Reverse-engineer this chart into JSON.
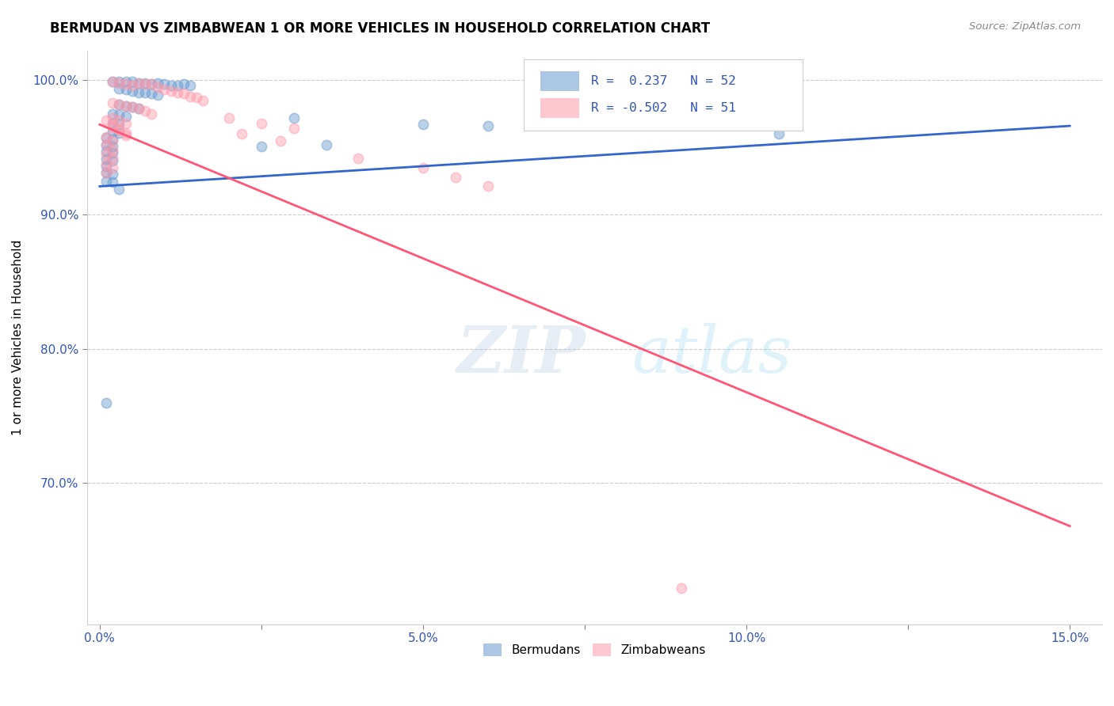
{
  "title": "BERMUDAN VS ZIMBABWEAN 1 OR MORE VEHICLES IN HOUSEHOLD CORRELATION CHART",
  "source": "Source: ZipAtlas.com",
  "ylabel": "1 or more Vehicles in Household",
  "xlim": [
    -0.002,
    0.155
  ],
  "ylim": [
    0.595,
    1.022
  ],
  "yticks": [
    0.7,
    0.8,
    0.9,
    1.0
  ],
  "ytick_labels": [
    "70.0%",
    "80.0%",
    "90.0%",
    "100.0%"
  ],
  "xtick_labels": [
    "0.0%",
    "",
    "5.0%",
    "",
    "10.0%",
    "",
    "15.0%"
  ],
  "xticks": [
    0.0,
    0.025,
    0.05,
    0.075,
    0.1,
    0.125,
    0.15
  ],
  "bermudan_color": "#6699CC",
  "zimbabwean_color": "#FF99AA",
  "bermudan_line_color": "#3366CC",
  "zimbabwean_line_color": "#FF5577",
  "legend_R_bermudan": "R =  0.237",
  "legend_N_bermudan": "N = 52",
  "legend_R_zimbabwean": "R = -0.502",
  "legend_N_zimbabwean": "N = 51",
  "watermark_zip": "ZIP",
  "watermark_atlas": "atlas",
  "bermudan_scatter": [
    [
      0.002,
      0.999
    ],
    [
      0.003,
      0.999
    ],
    [
      0.004,
      0.999
    ],
    [
      0.005,
      0.999
    ],
    [
      0.006,
      0.998
    ],
    [
      0.007,
      0.998
    ],
    [
      0.008,
      0.997
    ],
    [
      0.009,
      0.998
    ],
    [
      0.01,
      0.997
    ],
    [
      0.011,
      0.996
    ],
    [
      0.012,
      0.996
    ],
    [
      0.013,
      0.997
    ],
    [
      0.014,
      0.996
    ],
    [
      0.003,
      0.994
    ],
    [
      0.004,
      0.993
    ],
    [
      0.005,
      0.992
    ],
    [
      0.006,
      0.991
    ],
    [
      0.007,
      0.991
    ],
    [
      0.008,
      0.99
    ],
    [
      0.009,
      0.989
    ],
    [
      0.003,
      0.982
    ],
    [
      0.004,
      0.981
    ],
    [
      0.005,
      0.98
    ],
    [
      0.006,
      0.979
    ],
    [
      0.002,
      0.975
    ],
    [
      0.003,
      0.974
    ],
    [
      0.004,
      0.973
    ],
    [
      0.002,
      0.968
    ],
    [
      0.003,
      0.967
    ],
    [
      0.002,
      0.962
    ],
    [
      0.003,
      0.961
    ],
    [
      0.001,
      0.957
    ],
    [
      0.002,
      0.956
    ],
    [
      0.001,
      0.952
    ],
    [
      0.002,
      0.951
    ],
    [
      0.001,
      0.947
    ],
    [
      0.002,
      0.946
    ],
    [
      0.001,
      0.941
    ],
    [
      0.002,
      0.94
    ],
    [
      0.001,
      0.936
    ],
    [
      0.001,
      0.931
    ],
    [
      0.002,
      0.93
    ],
    [
      0.001,
      0.925
    ],
    [
      0.002,
      0.924
    ],
    [
      0.003,
      0.919
    ],
    [
      0.03,
      0.972
    ],
    [
      0.05,
      0.967
    ],
    [
      0.06,
      0.966
    ],
    [
      0.025,
      0.951
    ],
    [
      0.035,
      0.952
    ],
    [
      0.105,
      0.96
    ],
    [
      0.001,
      0.76
    ]
  ],
  "zimbabwean_scatter": [
    [
      0.002,
      0.999
    ],
    [
      0.003,
      0.998
    ],
    [
      0.004,
      0.997
    ],
    [
      0.005,
      0.996
    ],
    [
      0.006,
      0.998
    ],
    [
      0.007,
      0.997
    ],
    [
      0.008,
      0.997
    ],
    [
      0.009,
      0.995
    ],
    [
      0.01,
      0.993
    ],
    [
      0.011,
      0.992
    ],
    [
      0.012,
      0.991
    ],
    [
      0.013,
      0.99
    ],
    [
      0.014,
      0.988
    ],
    [
      0.015,
      0.987
    ],
    [
      0.016,
      0.985
    ],
    [
      0.002,
      0.983
    ],
    [
      0.003,
      0.982
    ],
    [
      0.004,
      0.981
    ],
    [
      0.005,
      0.98
    ],
    [
      0.006,
      0.979
    ],
    [
      0.007,
      0.977
    ],
    [
      0.008,
      0.975
    ],
    [
      0.002,
      0.972
    ],
    [
      0.003,
      0.97
    ],
    [
      0.004,
      0.968
    ],
    [
      0.002,
      0.965
    ],
    [
      0.003,
      0.963
    ],
    [
      0.004,
      0.961
    ],
    [
      0.001,
      0.958
    ],
    [
      0.002,
      0.955
    ],
    [
      0.001,
      0.952
    ],
    [
      0.002,
      0.948
    ],
    [
      0.001,
      0.945
    ],
    [
      0.002,
      0.942
    ],
    [
      0.001,
      0.938
    ],
    [
      0.002,
      0.935
    ],
    [
      0.001,
      0.931
    ],
    [
      0.02,
      0.972
    ],
    [
      0.025,
      0.968
    ],
    [
      0.03,
      0.964
    ],
    [
      0.022,
      0.96
    ],
    [
      0.028,
      0.955
    ],
    [
      0.04,
      0.942
    ],
    [
      0.05,
      0.935
    ],
    [
      0.06,
      0.921
    ],
    [
      0.055,
      0.928
    ],
    [
      0.001,
      0.97
    ],
    [
      0.002,
      0.967
    ],
    [
      0.003,
      0.963
    ],
    [
      0.004,
      0.959
    ],
    [
      0.09,
      0.622
    ]
  ],
  "bermudan_trendline": [
    [
      0.0,
      0.921
    ],
    [
      0.15,
      0.966
    ]
  ],
  "zimbabwean_trendline": [
    [
      0.0,
      0.967
    ],
    [
      0.15,
      0.668
    ]
  ]
}
